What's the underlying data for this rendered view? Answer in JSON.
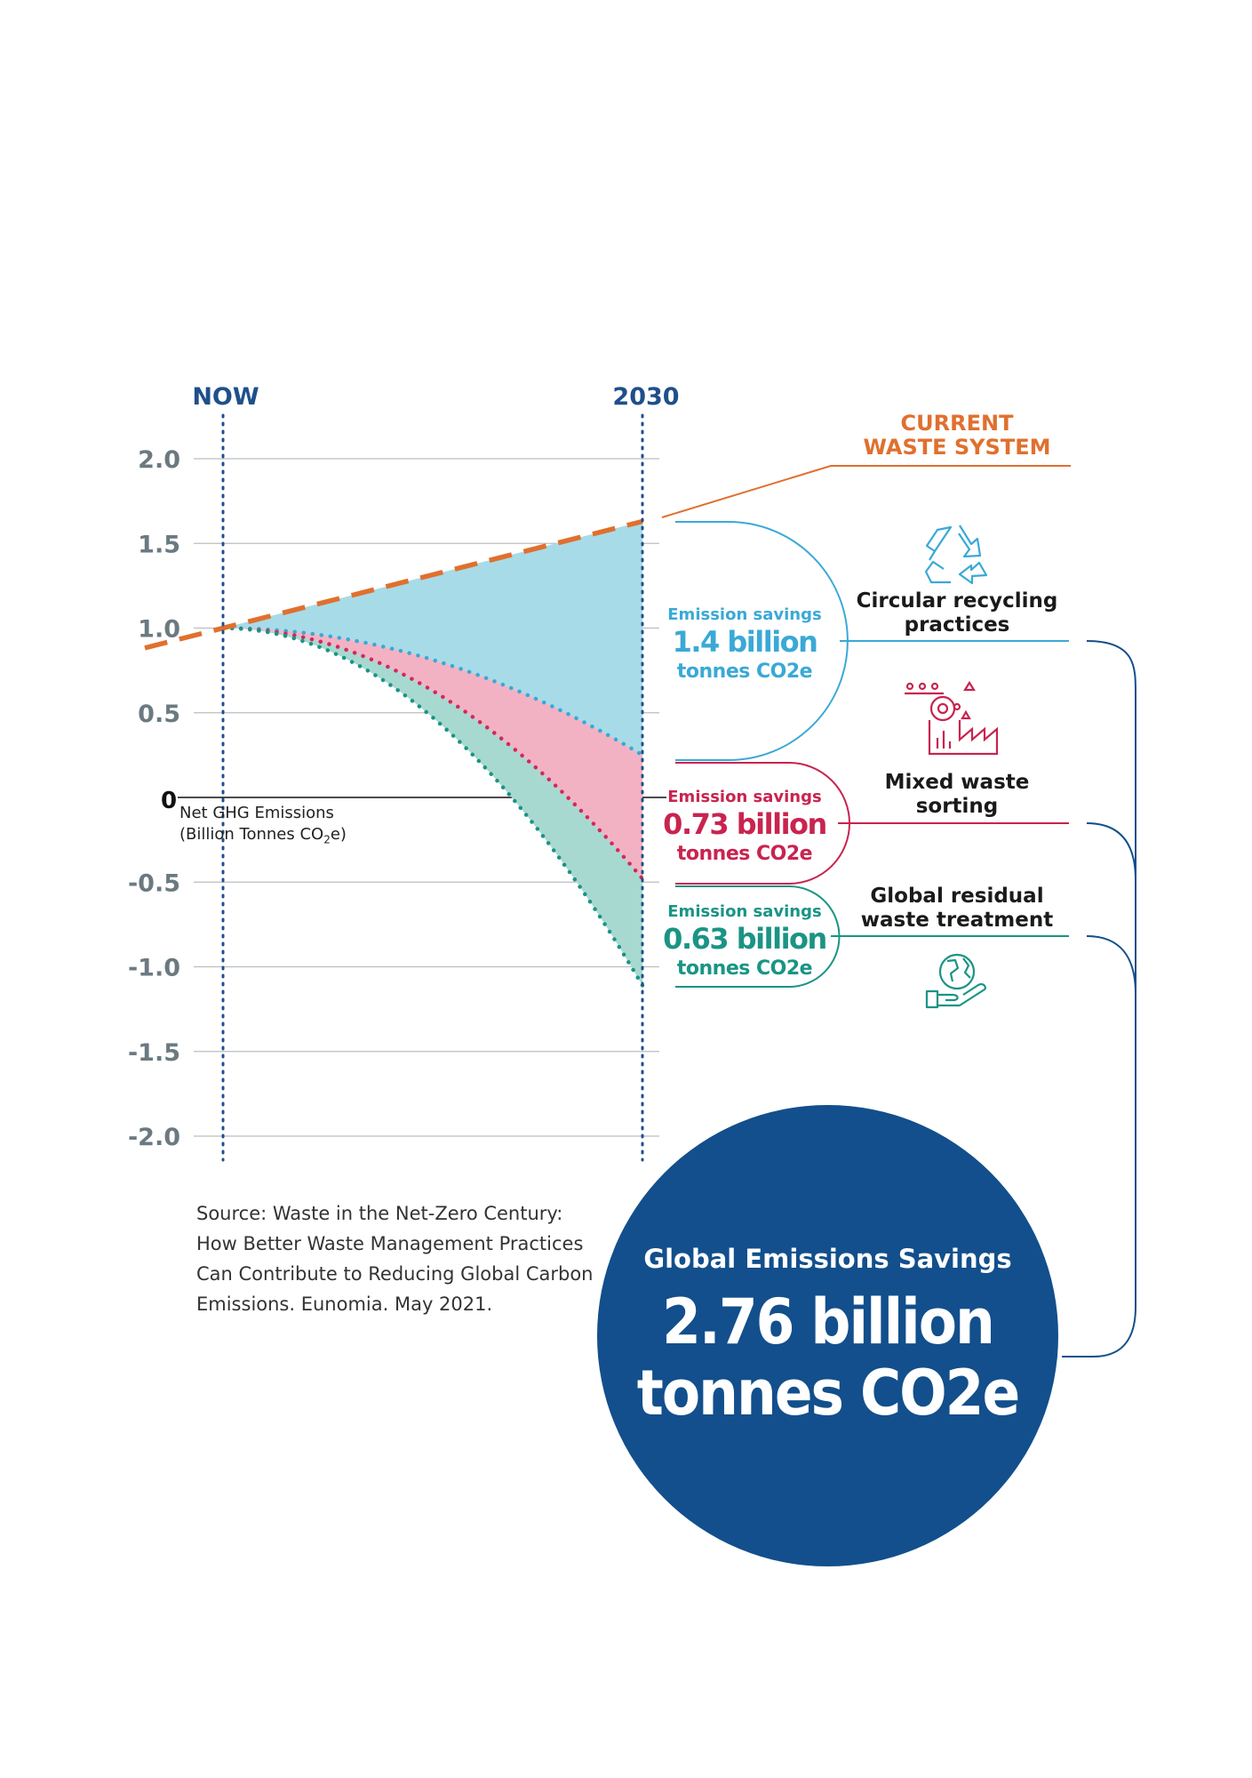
{
  "chart_data": {
    "type": "area",
    "x_markers": [
      "NOW",
      "2030"
    ],
    "ylim": [
      -2.0,
      2.0
    ],
    "yticks": [
      "2.0",
      "1.5",
      "1.0",
      "0.5",
      "0",
      "-0.5",
      "-1.0",
      "-1.5",
      "-2.0"
    ],
    "ylabel_lines": [
      "Net GHG Emissions",
      "(Billion Tonnes CO",
      "2",
      "e)"
    ],
    "grid": true,
    "baseline": {
      "name": "CURRENT WASTE SYSTEM",
      "start": 1.0,
      "end": 1.63,
      "color": "#e0702e"
    },
    "scenarios": [
      {
        "name": "Circular recycling practices",
        "end": 0.25,
        "color": "#3aa9d6",
        "fill": "#a8dbe8"
      },
      {
        "name": "Mixed waste sorting",
        "end": -0.48,
        "color": "#d4285a",
        "fill": "#f3b2c3"
      },
      {
        "name": "Global residual waste treatment",
        "end": -1.11,
        "color": "#1a9485",
        "fill": "#a7d9d0"
      }
    ]
  },
  "labels": {
    "now": "NOW",
    "year": "2030",
    "current_line1": "CURRENT",
    "current_line2": "WASTE SYSTEM"
  },
  "savings": [
    {
      "label": "Emission savings",
      "value": "1.4 billion",
      "unit": "tonnes CO2e",
      "color": "#3aa9d6",
      "category_line1": "Circular recycling",
      "category_line2": "practices",
      "icon": "recycle-icon"
    },
    {
      "label": "Emission savings",
      "value": "0.73 billion",
      "unit": "tonnes CO2e",
      "color": "#c8244f",
      "category_line1": "Mixed waste",
      "category_line2": "sorting",
      "icon": "sorting-facility-icon"
    },
    {
      "label": "Emission savings",
      "value": "0.63 billion",
      "unit": "tonnes CO2e",
      "color": "#1a9485",
      "category_line1": "Global residual",
      "category_line2": "waste treatment",
      "icon": "globe-in-hand-icon"
    }
  ],
  "total": {
    "title": "Global Emissions Savings",
    "line1": "2.76 billion",
    "line2": "tonnes CO2e",
    "color": "#124f8c"
  },
  "source": [
    "Source: Waste in the Net-Zero Century:",
    "How Better Waste Management Practices",
    "Can Contribute to Reducing Global Carbon",
    "Emissions. Eunomia. May 2021."
  ]
}
